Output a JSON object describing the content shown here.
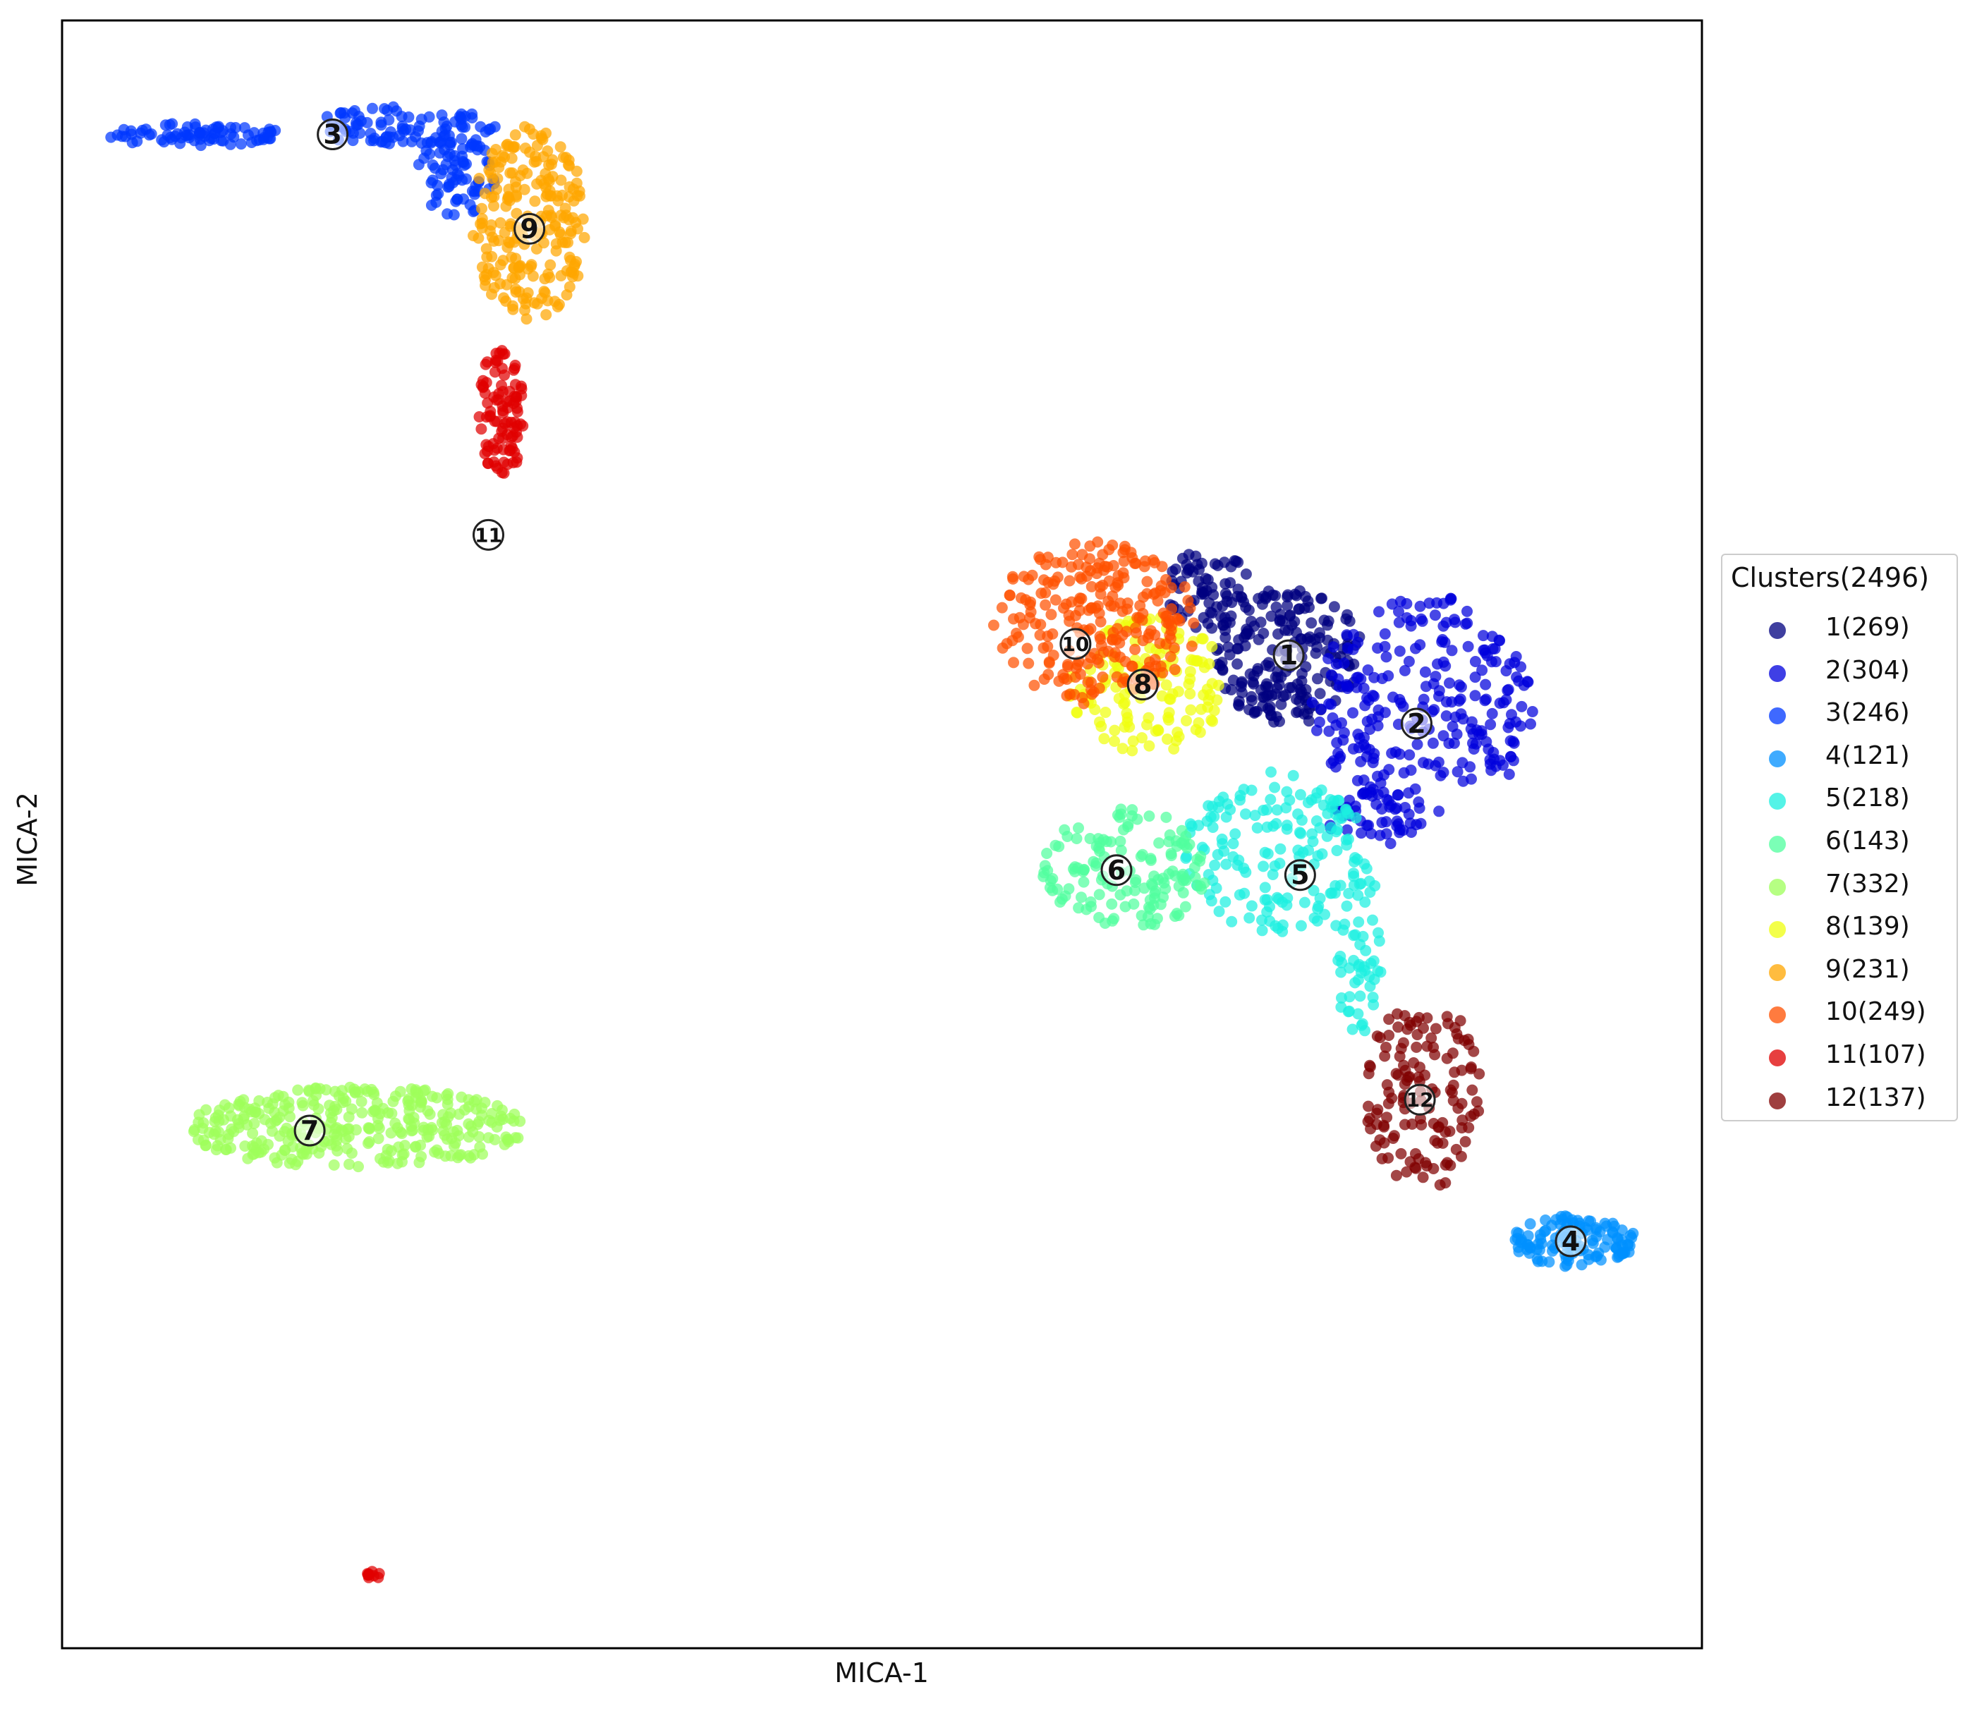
{
  "chart_data": {
    "type": "scatter",
    "title": "",
    "xlabel": "MICA-1",
    "ylabel": "MICA-2",
    "xlim": [
      0,
      1000
    ],
    "ylim": [
      0,
      1000
    ],
    "xticks": false,
    "yticks": false,
    "grid": false,
    "legend": {
      "title": "Clusters(2496)",
      "placement": "outside-right"
    },
    "series": [
      {
        "id": "1",
        "name": "1(269)",
        "count": 269,
        "color": "#000080",
        "centroid": [
          748,
          610
        ],
        "regions": [
          {
            "c": [
              748,
              610
            ],
            "r": [
              45,
              42
            ],
            "n": 200
          },
          {
            "c": [
              700,
              650
            ],
            "r": [
              28,
              25
            ],
            "n": 69
          }
        ]
      },
      {
        "id": "2",
        "name": "2(304)",
        "count": 304,
        "color": "#0000dd",
        "centroid": [
          826,
          568
        ],
        "regions": [
          {
            "c": [
              830,
              580
            ],
            "r": [
              68,
              68
            ],
            "n": 260
          },
          {
            "c": [
              800,
              510
            ],
            "r": [
              30,
              18
            ],
            "n": 44
          }
        ]
      },
      {
        "id": "3",
        "name": "3(246)",
        "count": 246,
        "color": "#0038ff",
        "centroid": [
          165,
          930
        ],
        "regions": [
          {
            "c": [
              80,
              930
            ],
            "r": [
              55,
              7
            ],
            "n": 80
          },
          {
            "c": [
              210,
              935
            ],
            "r": [
              60,
              12
            ],
            "n": 90
          },
          {
            "c": [
              240,
              905
            ],
            "r": [
              25,
              25
            ],
            "n": 76
          }
        ]
      },
      {
        "id": "4",
        "name": "4(121)",
        "count": 121,
        "color": "#0090ff",
        "centroid": [
          920,
          250
        ],
        "regions": [
          {
            "c": [
              922,
              250
            ],
            "r": [
              38,
              16
            ],
            "n": 121
          }
        ]
      },
      {
        "id": "5",
        "name": "5(218)",
        "count": 218,
        "color": "#1cf0e0",
        "centroid": [
          755,
          475
        ],
        "regions": [
          {
            "c": [
              740,
              490
            ],
            "r": [
              55,
              50
            ],
            "n": 160
          },
          {
            "c": [
              790,
              430
            ],
            "r": [
              15,
              55
            ],
            "n": 58
          }
        ]
      },
      {
        "id": "6",
        "name": "6(143)",
        "count": 143,
        "color": "#50ff9e",
        "centroid": [
          643,
          478
        ],
        "regions": [
          {
            "c": [
              648,
              478
            ],
            "r": [
              50,
              38
            ],
            "n": 143
          }
        ]
      },
      {
        "id": "7",
        "name": "7(332)",
        "count": 332,
        "color": "#9eff5a",
        "centroid": [
          151,
          318
        ],
        "regions": [
          {
            "c": [
              180,
              320
            ],
            "r": [
              105,
              25
            ],
            "n": 332
          }
        ]
      },
      {
        "id": "8",
        "name": "8(139)",
        "count": 139,
        "color": "#f0ff0e",
        "centroid": [
          659,
          592
        ],
        "regions": [
          {
            "c": [
              662,
              592
            ],
            "r": [
              48,
              42
            ],
            "n": 139
          }
        ]
      },
      {
        "id": "9",
        "name": "9(231)",
        "count": 231,
        "color": "#ffa600",
        "centroid": [
          285,
          872
        ],
        "regions": [
          {
            "c": [
              285,
              875
            ],
            "r": [
              35,
              60
            ],
            "n": 231
          }
        ]
      },
      {
        "id": "10",
        "name": "10(249)",
        "count": 249,
        "color": "#ff5000",
        "centroid": [
          618,
          617
        ],
        "regions": [
          {
            "c": [
              630,
              630
            ],
            "r": [
              62,
              50
            ],
            "n": 249
          }
        ]
      },
      {
        "id": "11",
        "name": "11(107)",
        "count": 107,
        "color": "#e00000",
        "centroid": [
          260,
          684
        ],
        "regions": [
          {
            "c": [
              268,
              760
            ],
            "r": [
              14,
              42
            ],
            "n": 97
          },
          {
            "c": [
              190,
              45
            ],
            "r": [
              4,
              3
            ],
            "n": 10
          }
        ]
      },
      {
        "id": "12",
        "name": "12(137)",
        "count": 137,
        "color": "#800000",
        "centroid": [
          828,
          337
        ],
        "regions": [
          {
            "c": [
              830,
              340
            ],
            "r": [
              35,
              60
            ],
            "n": 137
          }
        ]
      }
    ]
  }
}
